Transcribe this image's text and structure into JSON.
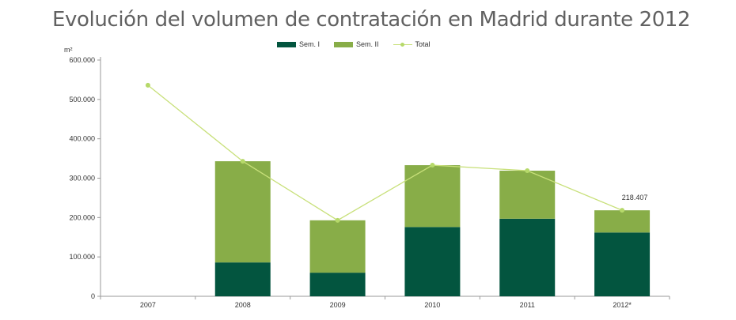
{
  "title": "Evolución del volumen de contratación en Madrid durante 2012",
  "colors": {
    "sem1": "#03553f",
    "sem2": "#88ad48",
    "total": "#c8e07a",
    "total_marker": "#b6d96a",
    "axis": "#9a9a9a"
  },
  "chart_data": {
    "type": "bar",
    "stacked": true,
    "title": "Evolución del volumen de contratación en Madrid durante 2012",
    "ylabel": "m²",
    "xlabel": "",
    "ylim": [
      0,
      600000
    ],
    "yticks": [
      0,
      100000,
      200000,
      300000,
      400000,
      500000,
      600000
    ],
    "ytick_labels": [
      "0",
      "100.000",
      "200.000",
      "300.000",
      "400.000",
      "500.000",
      "600.000"
    ],
    "categories": [
      "2007",
      "2008",
      "2009",
      "2010",
      "2011",
      "2012*"
    ],
    "series": [
      {
        "name": "Sem. I",
        "kind": "bar",
        "values": [
          null,
          86000,
          60000,
          176000,
          197000,
          162000
        ]
      },
      {
        "name": "Sem. II",
        "kind": "bar",
        "values": [
          null,
          257000,
          133000,
          157000,
          122000,
          56407
        ]
      },
      {
        "name": "Total",
        "kind": "line",
        "values": [
          536000,
          343000,
          193000,
          333000,
          319000,
          218407
        ]
      }
    ],
    "annotations": [
      {
        "category": "2012*",
        "text": "218.407"
      }
    ],
    "legend_position": "top-center",
    "grid": false
  }
}
